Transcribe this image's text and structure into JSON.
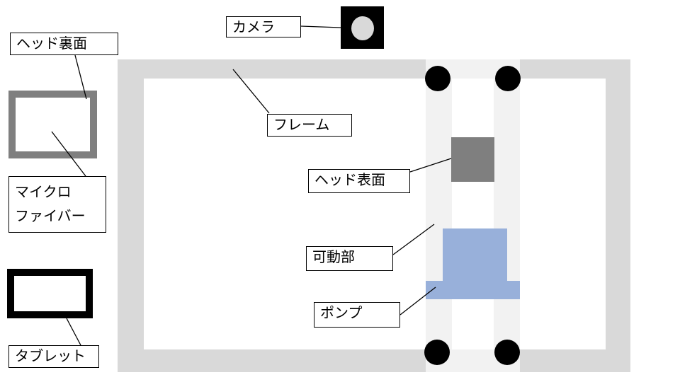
{
  "labels": {
    "camera": "カメラ",
    "head_back": "ヘッド裏面",
    "frame": "フレーム",
    "head_front": "ヘッド表面",
    "microfiber_line1": "マイクロ",
    "microfiber_line2": "ファイバー",
    "movable_part": "可動部",
    "pump": "ポンプ",
    "tablet": "タブレット"
  },
  "colors": {
    "frame": "#d9d9d9",
    "rail": "#f2f2f2",
    "head_back_border": "#7f7f7f",
    "head_front": "#7f7f7f",
    "pump": "#98b0da",
    "camera_body": "#000000",
    "camera_lens": "#d9d9d9",
    "wheel": "#000000",
    "tablet_border": "#000000"
  }
}
